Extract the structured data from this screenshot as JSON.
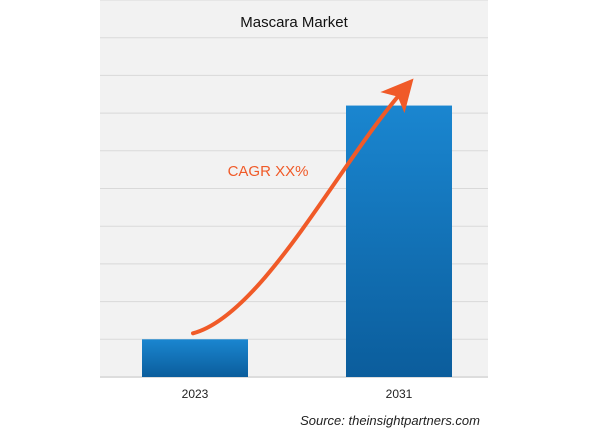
{
  "chart_data": {
    "type": "bar",
    "title": "Mascara Market",
    "categories": [
      "2023",
      "2031"
    ],
    "values": [
      1,
      7.2
    ],
    "ylim": [
      0,
      10
    ],
    "grid": true,
    "annotation": "CAGR XX%",
    "source": "Source: theinsightpartners.com"
  },
  "colors": {
    "panel_background": "#f2f2f2",
    "gridline": "#d9d9d9",
    "bar_top": "#1a86d0",
    "bar_bottom": "#0b5d9c",
    "arrow": "#f05a28",
    "annotation": "#f05a28"
  }
}
